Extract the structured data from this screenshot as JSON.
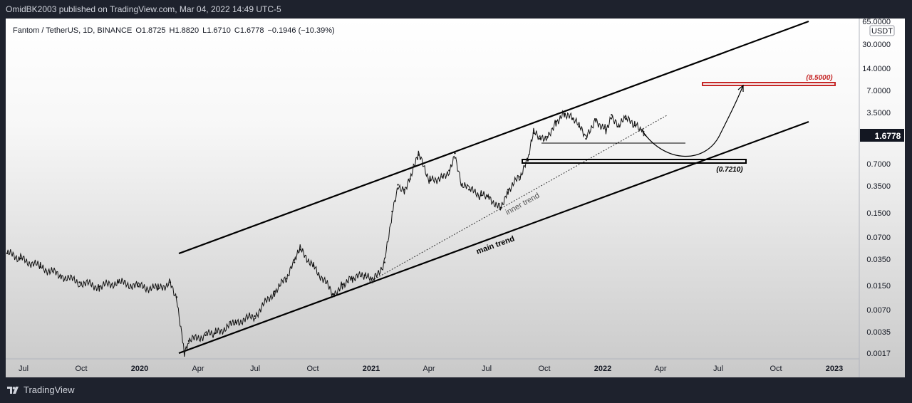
{
  "header": {
    "publisher": "OmidBK2003 published on TradingView.com, Mar 04, 2022 14:49 UTC-5"
  },
  "footer": {
    "brand": "TradingView"
  },
  "chart_data": {
    "type": "line",
    "title": "Fantom / TetherUS, 1D, BINANCE",
    "ohlc": {
      "open": "O1.8725",
      "high": "H1.8820",
      "low": "L1.6710",
      "close": "C1.6778",
      "change": "−0.1946 (−10.39%)"
    },
    "currency": "USDT",
    "scale": "log",
    "last_price": "1.6778",
    "ylim": [
      0.0015,
      70
    ],
    "y_ticks": [
      "65.0000",
      "30.0000",
      "14.0000",
      "7.0000",
      "3.5000",
      "1.6778",
      "0.7000",
      "0.3500",
      "0.1500",
      "0.0700",
      "0.0350",
      "0.0150",
      "0.0070",
      "0.0035",
      "0.0017"
    ],
    "x_ticks": [
      "Jul",
      "Oct",
      "2020",
      "Apr",
      "Jul",
      "Oct",
      "2021",
      "Apr",
      "Jul",
      "Oct",
      "2022",
      "Apr",
      "Jul",
      "Oct",
      "2023"
    ],
    "x_range": [
      "2019-06-10",
      "2023-01-31"
    ],
    "series": [
      {
        "x": [
          "2019-06-10",
          "2019-07-01",
          "2019-08-01",
          "2019-09-01",
          "2019-10-01",
          "2019-11-01",
          "2019-12-01",
          "2020-01-01",
          "2020-02-01",
          "2020-02-20",
          "2020-03-01",
          "2020-03-13",
          "2020-03-20",
          "2020-04-15",
          "2020-05-01",
          "2020-06-01",
          "2020-07-01",
          "2020-08-01",
          "2020-08-20",
          "2020-09-01",
          "2020-09-10",
          "2020-10-01",
          "2020-11-01",
          "2020-11-15",
          "2020-12-01",
          "2020-12-20",
          "2021-01-01",
          "2021-01-20",
          "2021-02-01",
          "2021-02-10",
          "2021-02-20",
          "2021-03-01",
          "2021-03-14",
          "2021-04-01",
          "2021-04-20",
          "2021-05-01",
          "2021-05-10",
          "2021-05-20",
          "2021-06-01",
          "2021-06-20",
          "2021-07-01",
          "2021-07-20",
          "2021-08-01",
          "2021-08-20",
          "2021-09-01",
          "2021-09-10",
          "2021-09-20",
          "2021-10-01",
          "2021-10-15",
          "2021-10-28",
          "2021-11-10",
          "2021-11-20",
          "2021-12-01",
          "2021-12-15",
          "2022-01-01",
          "2022-01-10",
          "2022-01-20",
          "2022-02-01",
          "2022-02-15",
          "2022-02-25",
          "2022-03-01",
          "2022-03-04"
        ],
        "y": [
          0.04,
          0.034,
          0.026,
          0.02,
          0.016,
          0.014,
          0.016,
          0.014,
          0.013,
          0.016,
          0.01,
          0.0018,
          0.0025,
          0.003,
          0.0032,
          0.0045,
          0.0055,
          0.012,
          0.018,
          0.03,
          0.045,
          0.027,
          0.011,
          0.015,
          0.018,
          0.02,
          0.016,
          0.03,
          0.15,
          0.35,
          0.3,
          0.42,
          0.9,
          0.4,
          0.45,
          0.55,
          0.95,
          0.35,
          0.3,
          0.25,
          0.24,
          0.17,
          0.3,
          0.45,
          0.75,
          1.8,
          1.5,
          1.6,
          2.6,
          3.3,
          2.8,
          2.2,
          1.5,
          2.8,
          2.0,
          3.2,
          2.2,
          2.8,
          2.3,
          2.0,
          1.87,
          1.6778
        ]
      }
    ],
    "annotations": [
      {
        "type": "text",
        "text": "inner trend"
      },
      {
        "type": "text",
        "text": "main trend"
      },
      {
        "type": "price_label",
        "text": "(8.5000)",
        "price": 8.5
      },
      {
        "type": "price_label",
        "text": "(0.7210)",
        "price": 0.721
      }
    ]
  }
}
